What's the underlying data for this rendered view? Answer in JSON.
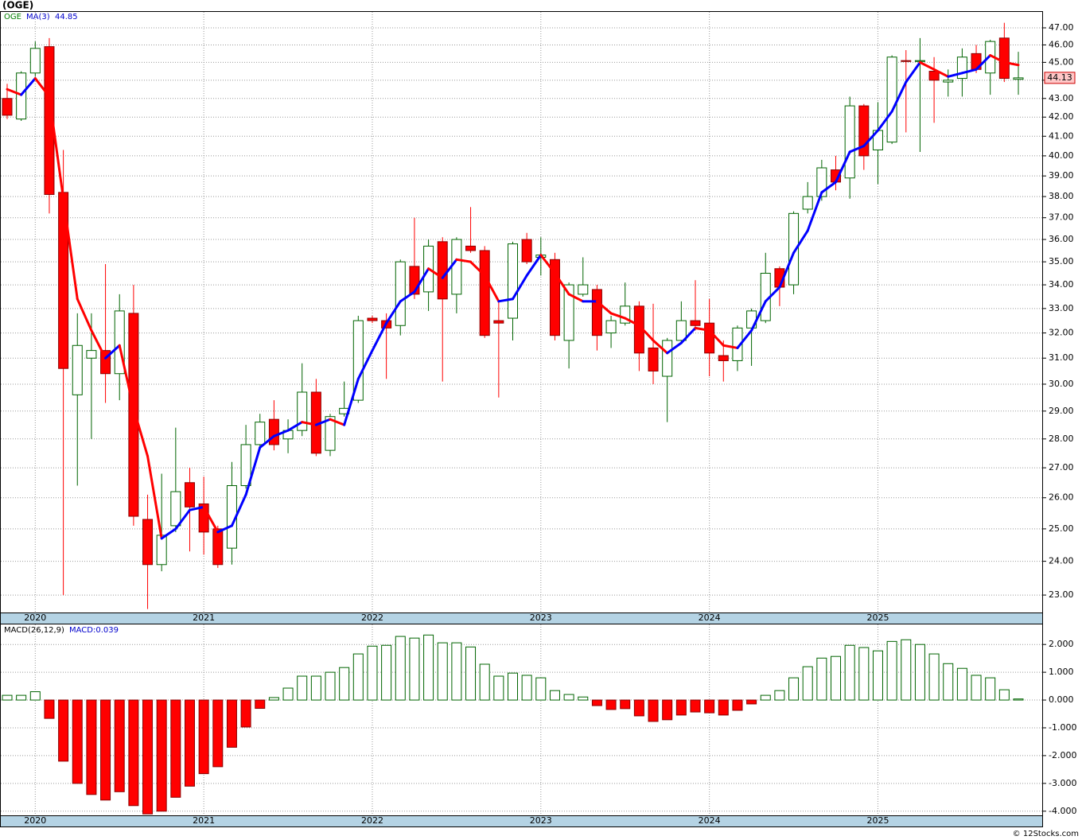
{
  "chart_data": [
    {
      "type": "candlestick",
      "title": "(OGE)",
      "symbol": "OGE",
      "price_label": "44.13",
      "log_scale": true,
      "grid": true,
      "up_color": "#006400",
      "down_color": "#ff0000",
      "categories": [
        null,
        null,
        "2020",
        null,
        null,
        null,
        null,
        null,
        null,
        null,
        null,
        null,
        null,
        null,
        "2021",
        null,
        null,
        null,
        null,
        null,
        null,
        null,
        null,
        null,
        null,
        null,
        "2022",
        null,
        null,
        null,
        null,
        null,
        null,
        null,
        null,
        null,
        null,
        null,
        "2023",
        null,
        null,
        null,
        null,
        null,
        null,
        null,
        null,
        null,
        null,
        null,
        "2024",
        null,
        null,
        null,
        null,
        null,
        null,
        null,
        null,
        null,
        null,
        null,
        "2025",
        null,
        null,
        null,
        null,
        null,
        null,
        null,
        null,
        null,
        null
      ],
      "open": [
        43.0,
        41.9,
        44.4,
        45.9,
        38.2,
        29.6,
        31.0,
        31.3,
        30.4,
        32.8,
        25.3,
        23.9,
        25.1,
        26.5,
        25.8,
        25.0,
        24.4,
        26.4,
        27.8,
        28.7,
        28.0,
        28.3,
        29.7,
        27.6,
        28.9,
        29.4,
        32.6,
        32.5,
        32.3,
        34.8,
        33.7,
        35.9,
        33.6,
        35.7,
        35.5,
        32.5,
        32.6,
        36.0,
        35.2,
        35.1,
        31.7,
        33.6,
        33.8,
        32.0,
        32.4,
        33.1,
        31.4,
        30.3,
        31.7,
        32.5,
        32.4,
        31.1,
        30.9,
        32.2,
        32.5,
        34.7,
        34.0,
        37.4,
        38.0,
        39.3,
        38.9,
        42.6,
        40.3,
        40.7,
        45.1,
        45.05,
        44.5,
        43.9,
        44.1,
        45.5,
        44.4,
        46.4,
        44.05
      ],
      "high": [
        43.8,
        44.5,
        46.2,
        46.4,
        40.3,
        32.8,
        32.8,
        34.9,
        33.6,
        34.0,
        26.1,
        26.8,
        28.4,
        27.0,
        26.7,
        25.1,
        27.2,
        28.5,
        28.9,
        29.4,
        28.7,
        30.8,
        30.2,
        28.9,
        30.1,
        32.7,
        32.7,
        32.8,
        35.1,
        37.0,
        36.0,
        36.1,
        36.1,
        37.5,
        35.7,
        33.3,
        35.9,
        36.3,
        36.1,
        35.4,
        34.1,
        35.2,
        34.0,
        32.7,
        34.1,
        33.3,
        33.2,
        31.8,
        33.3,
        34.2,
        33.4,
        31.7,
        32.3,
        33.0,
        35.4,
        34.8,
        37.3,
        38.7,
        39.8,
        40.0,
        43.1,
        42.7,
        42.8,
        45.4,
        45.7,
        46.4,
        45.3,
        44.6,
        45.8,
        46.0,
        46.3,
        47.3,
        45.6
      ],
      "low": [
        41.9,
        41.8,
        44.2,
        37.2,
        23.0,
        26.4,
        28.0,
        29.3,
        29.4,
        25.1,
        22.6,
        23.7,
        24.9,
        24.3,
        24.2,
        23.8,
        23.9,
        26.3,
        27.6,
        27.6,
        27.5,
        28.1,
        27.4,
        27.4,
        28.8,
        29.3,
        32.4,
        30.2,
        31.9,
        33.4,
        32.9,
        30.1,
        32.8,
        35.4,
        31.8,
        29.5,
        31.7,
        34.9,
        34.4,
        31.7,
        30.6,
        33.5,
        31.3,
        31.4,
        32.3,
        30.5,
        30.0,
        28.6,
        31.6,
        32.1,
        30.3,
        30.1,
        30.5,
        30.7,
        32.4,
        33.1,
        33.6,
        37.2,
        37.8,
        38.3,
        37.9,
        39.3,
        38.6,
        40.6,
        41.2,
        40.2,
        41.7,
        43.1,
        43.1,
        44.4,
        43.2,
        43.9,
        43.2
      ],
      "close": [
        42.1,
        44.4,
        45.8,
        38.1,
        30.6,
        31.5,
        31.3,
        30.4,
        32.9,
        25.4,
        23.9,
        24.8,
        26.2,
        25.7,
        24.9,
        23.9,
        26.4,
        27.8,
        28.6,
        27.8,
        28.3,
        29.7,
        27.5,
        28.8,
        29.1,
        32.5,
        32.5,
        32.2,
        35.0,
        33.6,
        35.7,
        33.4,
        36.0,
        35.5,
        31.9,
        32.4,
        35.8,
        35.0,
        35.3,
        31.9,
        34.0,
        34.0,
        31.9,
        32.5,
        33.1,
        31.2,
        30.5,
        31.7,
        32.5,
        32.3,
        31.2,
        30.9,
        32.2,
        32.9,
        34.5,
        33.9,
        37.2,
        38.0,
        39.4,
        38.7,
        42.6,
        40.0,
        41.3,
        45.3,
        45.05,
        45.1,
        44.0,
        44.0,
        45.3,
        44.6,
        46.2,
        44.1,
        44.13
      ],
      "ma": {
        "name": "MA(3)",
        "label": "44.85",
        "up_color": "#0000ff",
        "down_color": "#ff0000",
        "values": [
          43.5,
          43.2,
          44.1,
          43.1,
          37.9,
          33.4,
          32.1,
          31.0,
          31.5,
          29.1,
          27.4,
          24.7,
          25.0,
          25.6,
          25.7,
          24.9,
          25.1,
          26.1,
          27.7,
          28.1,
          28.3,
          28.6,
          28.5,
          28.7,
          28.5,
          30.2,
          31.3,
          32.4,
          33.3,
          33.7,
          34.7,
          34.3,
          35.1,
          35.0,
          34.4,
          33.3,
          33.4,
          34.4,
          35.3,
          34.5,
          33.6,
          33.3,
          33.3,
          32.8,
          32.6,
          32.3,
          31.7,
          31.2,
          31.6,
          32.2,
          32.1,
          31.5,
          31.4,
          32.1,
          33.3,
          33.9,
          35.4,
          36.4,
          38.2,
          38.7,
          40.2,
          40.5,
          41.3,
          42.3,
          43.9,
          45.0,
          44.6,
          44.2,
          44.4,
          44.6,
          45.4,
          45.0,
          44.85
        ]
      },
      "ylim": [
        22.5,
        48
      ],
      "yticks": [
        {
          "value": 23,
          "label": "23.00"
        },
        {
          "value": 24,
          "label": "24.00"
        },
        {
          "value": 25,
          "label": "25.00"
        },
        {
          "value": 26,
          "label": "26.00"
        },
        {
          "value": 27,
          "label": "27.00"
        },
        {
          "value": 28,
          "label": "28.00"
        },
        {
          "value": 29,
          "label": "29.00"
        },
        {
          "value": 30,
          "label": "30.00"
        },
        {
          "value": 31,
          "label": "31.00"
        },
        {
          "value": 32,
          "label": "32.00"
        },
        {
          "value": 33,
          "label": "33.00"
        },
        {
          "value": 34,
          "label": "34.00"
        },
        {
          "value": 35,
          "label": "35.00"
        },
        {
          "value": 36,
          "label": "36.00"
        },
        {
          "value": 37,
          "label": "37.00"
        },
        {
          "value": 38,
          "label": "38.00"
        },
        {
          "value": 39,
          "label": "39.00"
        },
        {
          "value": 40,
          "label": "40.00"
        },
        {
          "value": 41,
          "label": "41.00"
        },
        {
          "value": 42,
          "label": "42.00"
        },
        {
          "value": 43,
          "label": "43.00"
        },
        {
          "value": 44,
          "label": "44.00"
        },
        {
          "value": 45,
          "label": "45.00"
        },
        {
          "value": 46,
          "label": "46.00"
        },
        {
          "value": 47,
          "label": "47.00"
        }
      ]
    },
    {
      "type": "bar",
      "title": "MACD(26,12,9)",
      "legend": "MACD:0.039",
      "grid": true,
      "pos_color": "#006400",
      "neg_color": "#ff0000",
      "values": [
        0.17,
        0.17,
        0.3,
        -0.66,
        -2.2,
        -3.0,
        -3.4,
        -3.6,
        -3.3,
        -3.8,
        -4.1,
        -4.0,
        -3.5,
        -3.1,
        -2.65,
        -2.4,
        -1.7,
        -0.97,
        -0.3,
        0.09,
        0.43,
        0.86,
        0.86,
        1.0,
        1.17,
        1.66,
        1.94,
        1.97,
        2.29,
        2.23,
        2.34,
        2.06,
        2.06,
        1.91,
        1.29,
        0.86,
        0.97,
        0.89,
        0.8,
        0.34,
        0.2,
        0.11,
        -0.2,
        -0.34,
        -0.31,
        -0.57,
        -0.77,
        -0.71,
        -0.54,
        -0.43,
        -0.46,
        -0.54,
        -0.37,
        -0.14,
        0.17,
        0.34,
        0.8,
        1.2,
        1.51,
        1.57,
        1.97,
        1.89,
        1.77,
        2.11,
        2.17,
        2.0,
        1.66,
        1.31,
        1.14,
        0.89,
        0.8,
        0.37,
        0.039
      ],
      "ylim": [
        -4.15,
        2.75
      ],
      "yticks": [
        {
          "value": -4,
          "label": "-4.000"
        },
        {
          "value": -3,
          "label": "-3.000"
        },
        {
          "value": -2,
          "label": "-2.000"
        },
        {
          "value": -1,
          "label": "-1.000"
        },
        {
          "value": 0,
          "label": "0.000"
        },
        {
          "value": 1,
          "label": "1.000"
        },
        {
          "value": 2,
          "label": "2.000"
        }
      ]
    }
  ],
  "footer": "© 12Stocks.com"
}
